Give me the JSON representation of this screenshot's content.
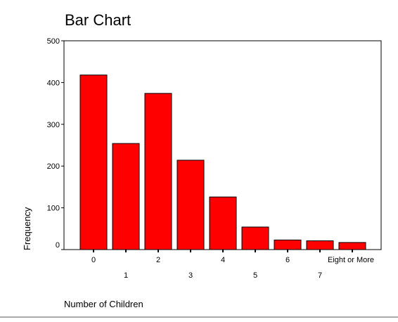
{
  "chart_data": {
    "type": "bar",
    "title": "Bar Chart",
    "xlabel": "Number of Children",
    "ylabel": "Frequency",
    "categories": [
      "0",
      "1",
      "2",
      "3",
      "4",
      "5",
      "6",
      "7",
      "Eight or More"
    ],
    "values": [
      418,
      254,
      374,
      214,
      126,
      54,
      23,
      21,
      17
    ],
    "ylim": [
      0,
      500
    ],
    "yticks": [
      "0",
      "100",
      "200",
      "300",
      "400",
      "500"
    ],
    "bar_color": "#ff0000",
    "grid": false,
    "legend": "none"
  }
}
